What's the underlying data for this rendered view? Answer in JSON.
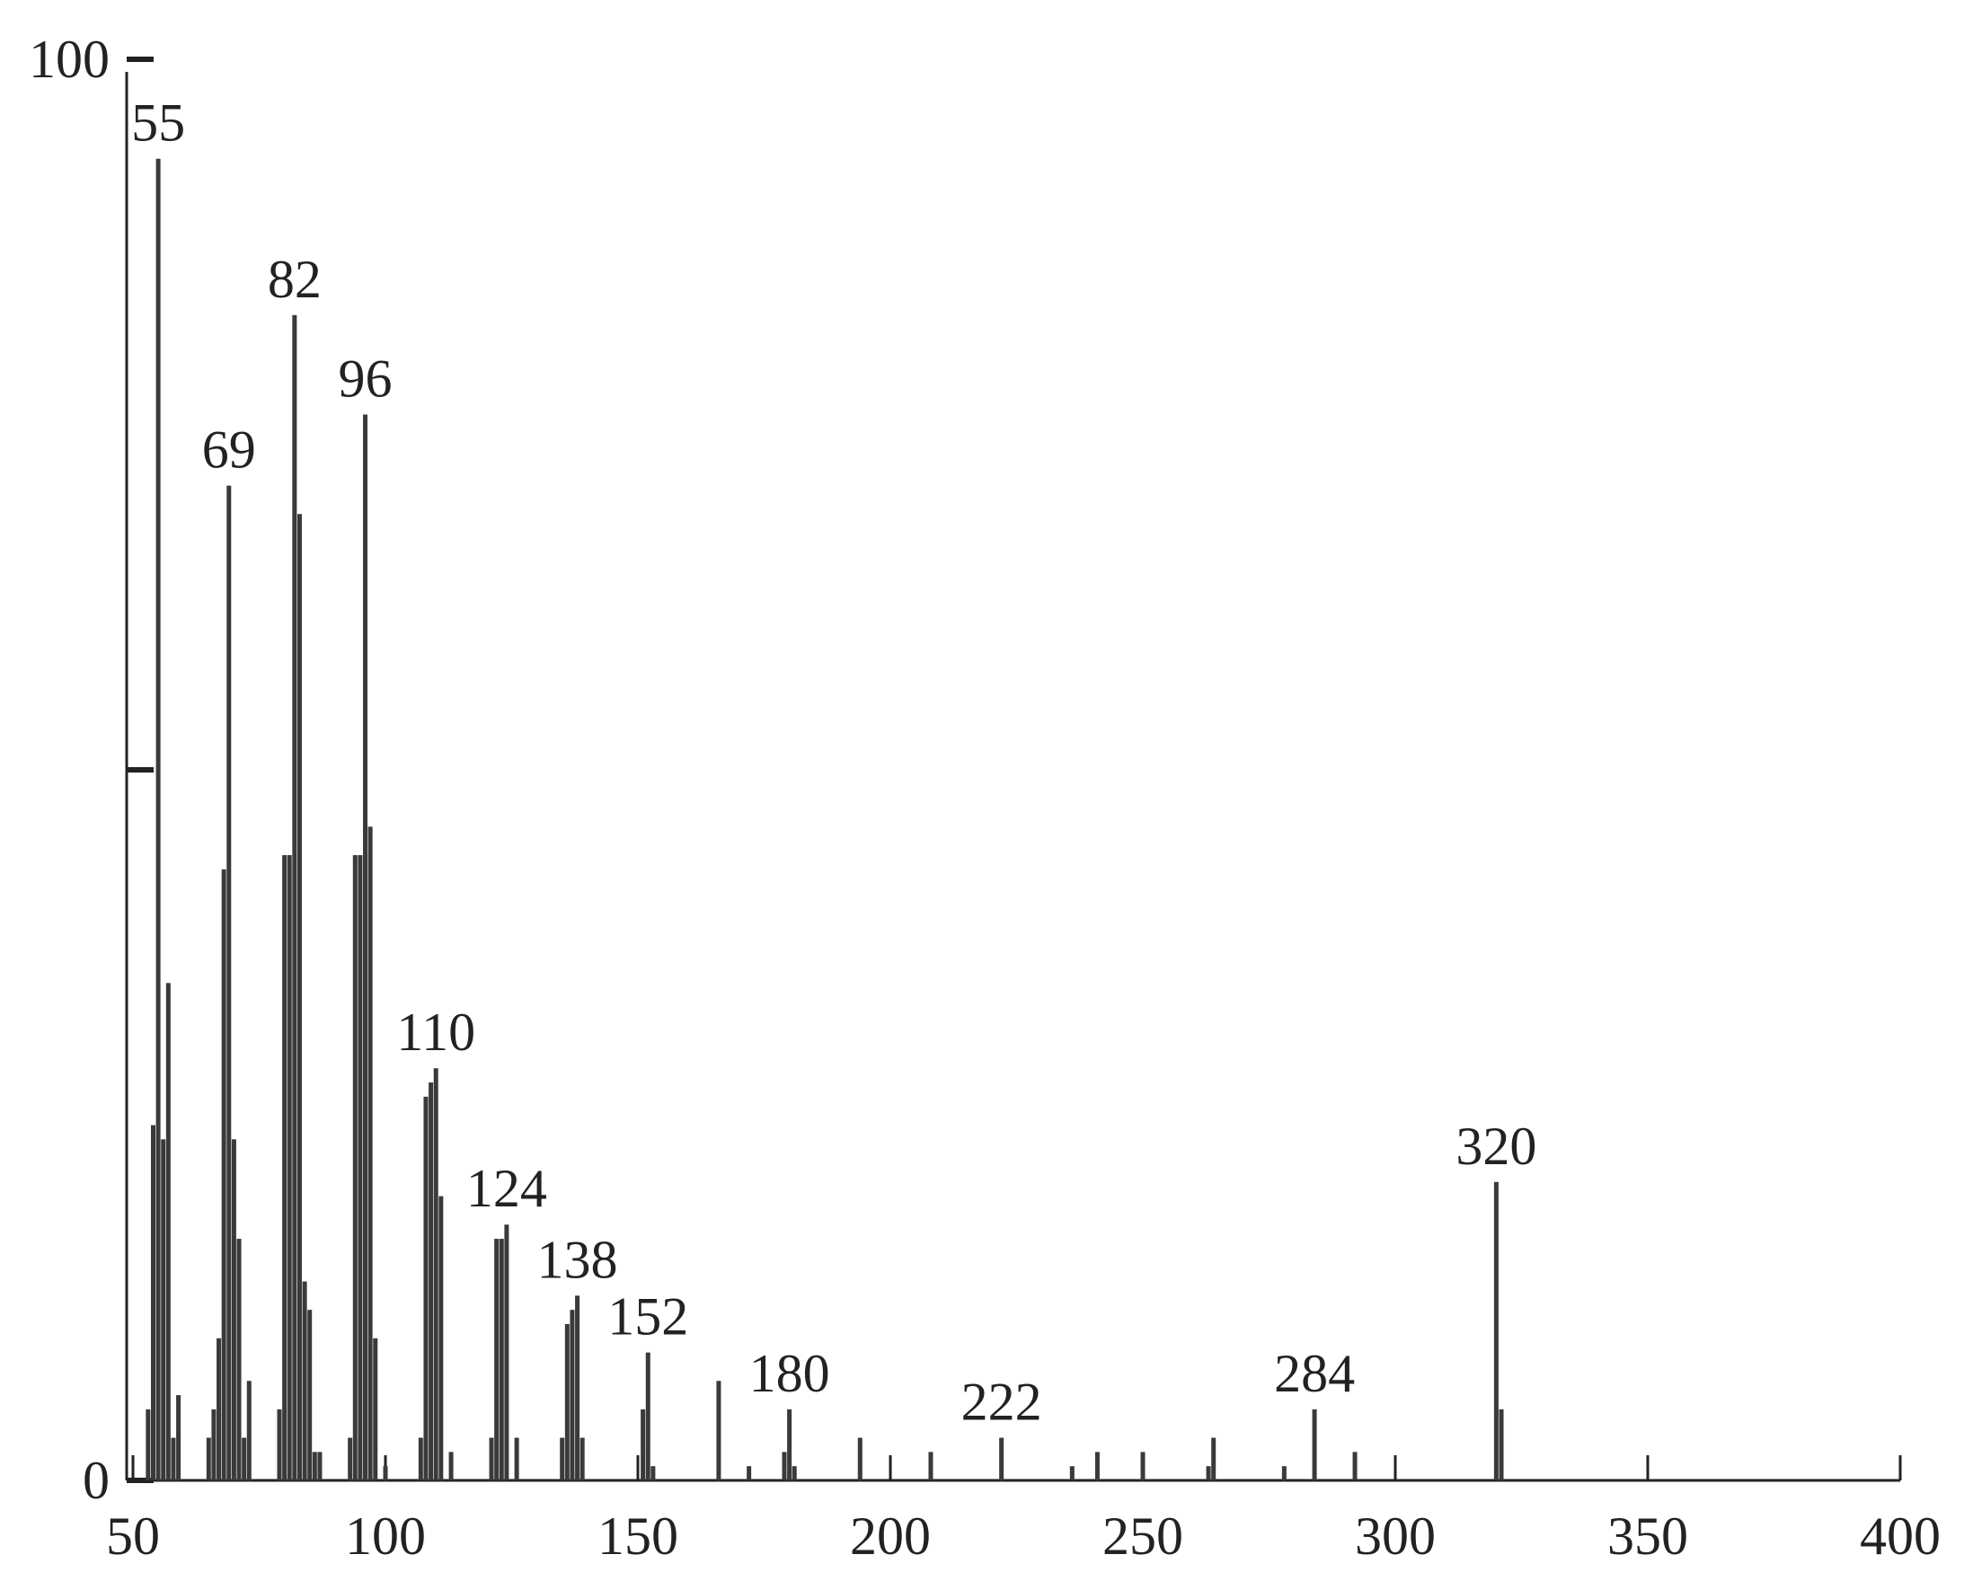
{
  "chart_data": {
    "type": "bar",
    "color": "#3a3a3a",
    "x": [
      53,
      54,
      55,
      56,
      57,
      58,
      59,
      65,
      66,
      67,
      68,
      69,
      70,
      71,
      72,
      73,
      79,
      80,
      81,
      82,
      83,
      84,
      85,
      86,
      87,
      93,
      94,
      95,
      96,
      97,
      98,
      100,
      107,
      108,
      109,
      110,
      111,
      113,
      121,
      122,
      123,
      124,
      126,
      135,
      136,
      137,
      138,
      139,
      151,
      152,
      153,
      166,
      172,
      179,
      180,
      181,
      194,
      208,
      222,
      236,
      241,
      250,
      263,
      264,
      278,
      284,
      292,
      320,
      321
    ],
    "values": [
      5,
      25,
      93,
      24,
      35,
      3,
      6,
      3,
      5,
      10,
      43,
      70,
      24,
      17,
      3,
      7,
      5,
      44,
      44,
      82,
      68,
      14,
      12,
      2,
      2,
      3,
      44,
      44,
      75,
      46,
      10,
      1,
      3,
      27,
      28,
      29,
      20,
      2,
      3,
      17,
      17,
      18,
      3,
      3,
      11,
      12,
      13,
      3,
      5,
      9,
      1,
      7,
      1,
      2,
      5,
      1,
      3,
      2,
      3,
      1,
      2,
      2,
      1,
      3,
      1,
      5,
      2,
      21,
      5
    ],
    "annotations": [
      55,
      69,
      82,
      96,
      110,
      124,
      138,
      152,
      180,
      222,
      284,
      320
    ],
    "xlim": [
      50,
      400
    ],
    "xticks": [
      50,
      100,
      150,
      200,
      250,
      300,
      350,
      400
    ],
    "ylim": [
      0,
      100
    ],
    "yticks": [
      0,
      {
        "value": 50,
        "label": null
      },
      100
    ]
  }
}
